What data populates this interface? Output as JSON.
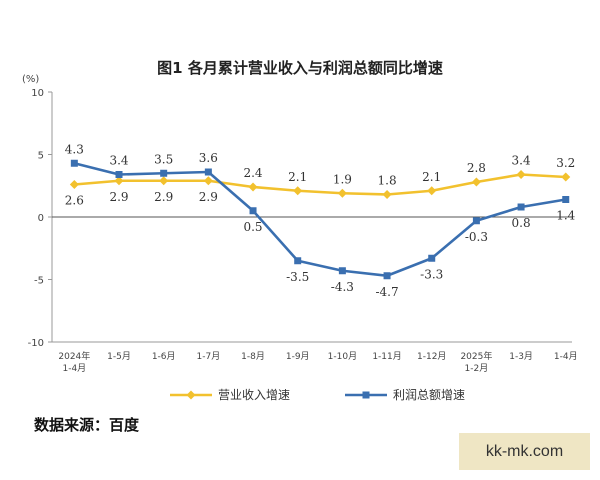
{
  "chart_data": {
    "type": "line",
    "title": "图1 各月累计营业收入与利润总额同比增速",
    "unit": "(%)",
    "ylim": [
      -10,
      10
    ],
    "yticks": [
      "10",
      "5",
      "0",
      "-5",
      "-10"
    ],
    "categories": [
      [
        "2024年",
        "1-4月"
      ],
      [
        "1-5月"
      ],
      [
        "1-6月"
      ],
      [
        "1-7月"
      ],
      [
        "1-8月"
      ],
      [
        "1-9月"
      ],
      [
        "1-10月"
      ],
      [
        "1-11月"
      ],
      [
        "1-12月"
      ],
      [
        "2025年",
        "1-2月"
      ],
      [
        "1-3月"
      ],
      [
        "1-4月"
      ]
    ],
    "series": [
      {
        "name": "营业收入增速",
        "color": "#f2c12e",
        "values": [
          2.6,
          2.9,
          2.9,
          2.9,
          2.4,
          2.1,
          1.9,
          1.8,
          2.1,
          2.8,
          3.4,
          3.2
        ]
      },
      {
        "name": "利润总额增速",
        "color": "#3a6fb0",
        "values": [
          4.3,
          3.4,
          3.5,
          3.6,
          0.5,
          -3.5,
          -4.3,
          -4.7,
          -3.3,
          -0.3,
          0.8,
          1.4
        ]
      }
    ],
    "grid": false,
    "legend": "bottom"
  },
  "source_note": "数据来源：百度",
  "watermark": "kk-mk.com"
}
